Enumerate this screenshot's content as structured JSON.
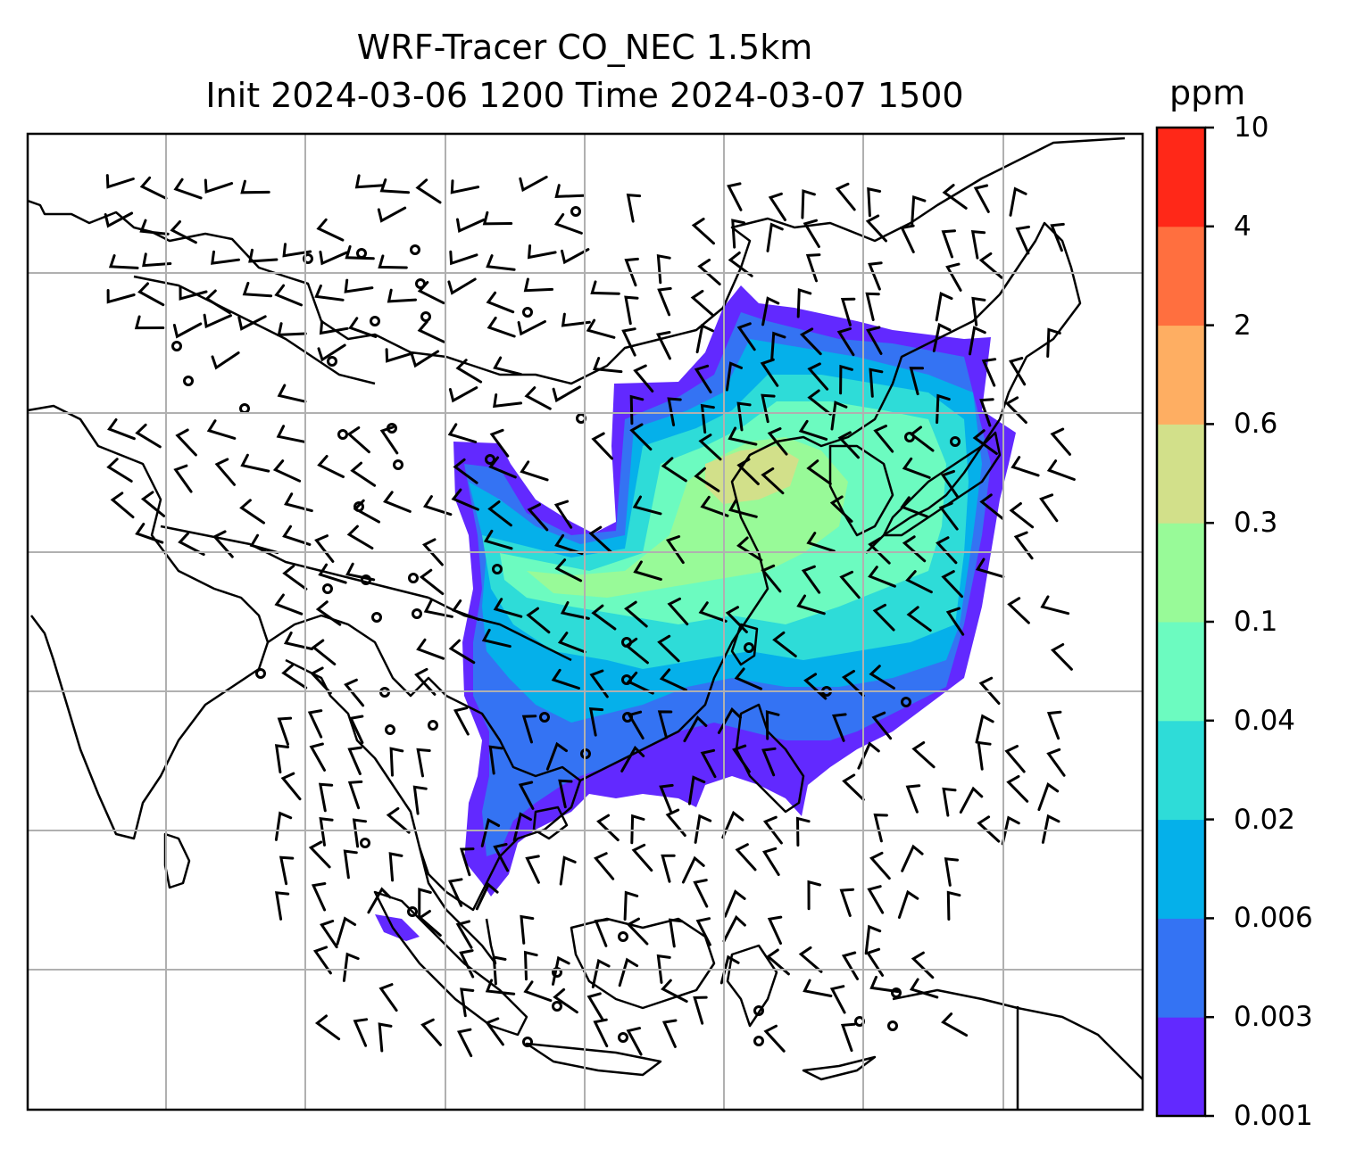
{
  "title": {
    "line1": "WRF-Tracer CO_NEC 1.5km",
    "line2": "Init 2024-03-06 1200 Time 2024-03-07 1500"
  },
  "colorbar": {
    "unit": "ppm",
    "levels": [
      "0.001",
      "0.003",
      "0.006",
      "0.02",
      "0.04",
      "0.1",
      "0.3",
      "0.6",
      "2",
      "4",
      "10"
    ],
    "colors": [
      "#6229ff",
      "#3473f3",
      "#05b0ea",
      "#2edcd8",
      "#6cfbc0",
      "#98fa98",
      "#d2e08a",
      "#feae62",
      "#ff6f3f",
      "#ff2818"
    ]
  },
  "map": {
    "gridlines": true,
    "gridline_color": "#b0b0b0",
    "coastline_color": "#000000",
    "wind_barb_color": "#000000",
    "plume_region": "East China / Korea / East China Sea / South China Sea",
    "calm_marker": "circle"
  }
}
